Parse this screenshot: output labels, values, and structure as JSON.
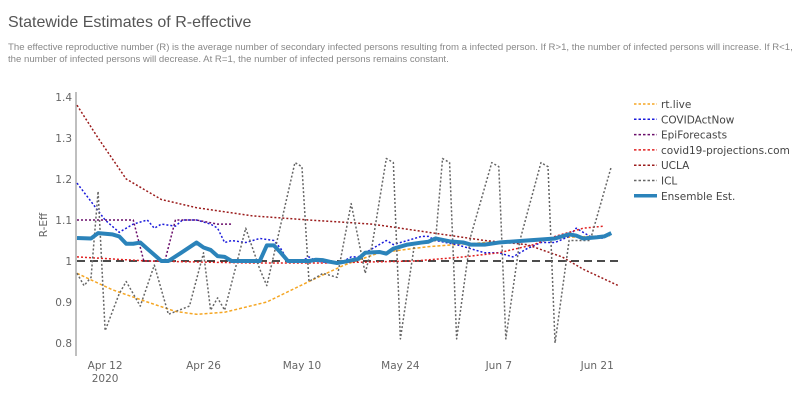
{
  "header": {
    "title": "Statewide Estimates of R-effective",
    "description": "The effective reproductive number (R) is the average number of secondary infected persons resulting from a infected person. If R>1, the number of infected persons will increase. If R<1, the number of infected persons will decrease. At R=1, the number of infected persons remains constant."
  },
  "chart_data": {
    "type": "line",
    "title": "Statewide Estimates of R-effective",
    "xlabel": "",
    "ylabel": "R-Eff",
    "x_unit": "days since Apr 8 2020",
    "xlim": [
      0,
      77
    ],
    "ylim": [
      0.775,
      1.41
    ],
    "x_ticks": [
      {
        "day": 4,
        "label": "Apr 12",
        "sub": "2020"
      },
      {
        "day": 18,
        "label": "Apr 26"
      },
      {
        "day": 32,
        "label": "May 10"
      },
      {
        "day": 46,
        "label": "May 24"
      },
      {
        "day": 60,
        "label": "Jun 7"
      },
      {
        "day": 74,
        "label": "Jun 21"
      }
    ],
    "y_ticks": [
      0.8,
      0.9,
      1,
      1.1,
      1.2,
      1.3,
      1.4
    ],
    "y_tick_labels": [
      "0.8",
      "0.9",
      "1",
      "1.1",
      "1.2",
      "1.3",
      "1.4"
    ],
    "reference_line": 1.0,
    "legend_position": "right",
    "series": [
      {
        "name": "rt.live",
        "color": "#f5a623",
        "dash": "3,2",
        "width": 1.5,
        "points": [
          [
            0,
            0.97
          ],
          [
            5,
            0.93
          ],
          [
            10,
            0.9
          ],
          [
            14,
            0.877
          ],
          [
            17,
            0.87
          ],
          [
            21,
            0.875
          ],
          [
            27,
            0.9
          ],
          [
            33,
            0.95
          ],
          [
            38,
            0.99
          ],
          [
            43,
            1.02
          ],
          [
            50,
            1.035
          ],
          [
            58,
            1.045
          ],
          [
            63,
            1.05
          ],
          [
            70,
            1.058
          ],
          [
            76,
            1.062
          ]
        ]
      },
      {
        "name": "COVIDActNow",
        "color": "#1a1adb",
        "dash": "2,2",
        "width": 1.5,
        "points": [
          [
            0,
            1.19
          ],
          [
            4,
            1.1
          ],
          [
            6,
            1.07
          ],
          [
            8,
            1.09
          ],
          [
            10,
            1.1
          ],
          [
            11,
            1.08
          ],
          [
            12,
            1.09
          ],
          [
            14,
            1.085
          ],
          [
            15,
            1.1
          ],
          [
            17,
            1.1
          ],
          [
            19,
            1.09
          ],
          [
            20,
            1.08
          ],
          [
            21,
            1.045
          ],
          [
            22,
            1.05
          ],
          [
            24,
            1.045
          ],
          [
            25,
            1.05
          ],
          [
            26,
            1.055
          ],
          [
            28,
            1.05
          ],
          [
            29,
            1.03
          ],
          [
            30,
            1.0
          ],
          [
            32,
            1.0
          ],
          [
            33,
            1.01
          ],
          [
            34,
            1.0
          ],
          [
            36,
            0.995
          ],
          [
            38,
            1.0
          ],
          [
            39,
            1.01
          ],
          [
            40,
            1.01
          ],
          [
            41,
            1.02
          ],
          [
            44,
            1.05
          ],
          [
            45,
            1.04
          ],
          [
            47,
            1.05
          ],
          [
            49,
            1.06
          ],
          [
            50,
            1.06
          ],
          [
            51,
            1.05
          ],
          [
            54,
            1.04
          ],
          [
            56,
            1.03
          ],
          [
            58,
            1.02
          ],
          [
            60,
            1.02
          ],
          [
            62,
            1.01
          ],
          [
            64,
            1.03
          ],
          [
            66,
            1.045
          ],
          [
            68,
            1.045
          ],
          [
            70,
            1.06
          ],
          [
            71,
            1.08
          ],
          [
            73,
            1.06
          ],
          [
            75,
            1.055
          ]
        ]
      },
      {
        "name": "EpiForecasts",
        "color": "#6a0d6a",
        "dash": "2,2",
        "width": 1.5,
        "points": [
          [
            0,
            1.1
          ],
          [
            8,
            1.1
          ],
          [
            9.5,
            1.0
          ],
          [
            12.5,
            1.0
          ],
          [
            14,
            1.1
          ],
          [
            17,
            1.1
          ],
          [
            20,
            1.09
          ],
          [
            22,
            1.09
          ]
        ]
      },
      {
        "name": "covid19-projections.com",
        "color": "#e02020",
        "dash": "2,2",
        "width": 1.5,
        "points": [
          [
            0,
            1.01
          ],
          [
            10,
            1.0
          ],
          [
            25,
            0.995
          ],
          [
            35,
            0.995
          ],
          [
            48,
            1.0
          ],
          [
            55,
            1.01
          ],
          [
            60,
            1.02
          ],
          [
            65,
            1.04
          ],
          [
            68,
            1.06
          ],
          [
            72,
            1.08
          ],
          [
            75,
            1.085
          ]
        ]
      },
      {
        "name": "UCLA",
        "color": "#9b1c1c",
        "dash": "2,2",
        "width": 1.5,
        "points": [
          [
            0,
            1.38
          ],
          [
            3,
            1.3
          ],
          [
            7,
            1.2
          ],
          [
            12,
            1.15
          ],
          [
            17,
            1.13
          ],
          [
            25,
            1.11
          ],
          [
            33,
            1.1
          ],
          [
            42,
            1.09
          ],
          [
            50,
            1.07
          ],
          [
            58,
            1.05
          ],
          [
            64,
            1.04
          ],
          [
            69,
            1.01
          ],
          [
            72,
            0.98
          ],
          [
            77,
            0.94
          ]
        ]
      },
      {
        "name": "ICL",
        "color": "#666666",
        "dash": "2,2",
        "width": 1.5,
        "points": [
          [
            0,
            0.97
          ],
          [
            1,
            0.94
          ],
          [
            2,
            0.96
          ],
          [
            3,
            1.17
          ],
          [
            4,
            0.83
          ],
          [
            6,
            0.92
          ],
          [
            7,
            0.95
          ],
          [
            9,
            0.89
          ],
          [
            11,
            0.99
          ],
          [
            13,
            0.87
          ],
          [
            16,
            0.89
          ],
          [
            18,
            1.02
          ],
          [
            19,
            0.88
          ],
          [
            20,
            0.91
          ],
          [
            21,
            0.88
          ],
          [
            24,
            1.08
          ],
          [
            26,
            0.98
          ],
          [
            27,
            0.94
          ],
          [
            31,
            1.24
          ],
          [
            32,
            1.23
          ],
          [
            33,
            0.95
          ],
          [
            35,
            0.97
          ],
          [
            37,
            0.96
          ],
          [
            39,
            1.14
          ],
          [
            41,
            0.97
          ],
          [
            42,
            1.04
          ],
          [
            44,
            1.25
          ],
          [
            45,
            1.24
          ],
          [
            46,
            0.81
          ],
          [
            48,
            1.04
          ],
          [
            51,
            1.05
          ],
          [
            52,
            1.25
          ],
          [
            53,
            1.24
          ],
          [
            54,
            0.81
          ],
          [
            56,
            1.06
          ],
          [
            59,
            1.24
          ],
          [
            60,
            1.23
          ],
          [
            61,
            0.81
          ],
          [
            63,
            1.05
          ],
          [
            66,
            1.24
          ],
          [
            67,
            1.23
          ],
          [
            68,
            0.8
          ],
          [
            70,
            1.05
          ],
          [
            73,
            1.05
          ],
          [
            76,
            1.23
          ]
        ]
      },
      {
        "name": "Ensemble Est.",
        "color": "#2b83ba",
        "dash": "",
        "width": 4,
        "points": [
          [
            0,
            1.056
          ],
          [
            2,
            1.055
          ],
          [
            3,
            1.068
          ],
          [
            5,
            1.065
          ],
          [
            6,
            1.06
          ],
          [
            7,
            1.042
          ],
          [
            8,
            1.042
          ],
          [
            9,
            1.045
          ],
          [
            10,
            1.03
          ],
          [
            12,
            1.0
          ],
          [
            13,
            1.0
          ],
          [
            15,
            1.022
          ],
          [
            17,
            1.045
          ],
          [
            18,
            1.033
          ],
          [
            19,
            1.027
          ],
          [
            20,
            1.012
          ],
          [
            21,
            1.01
          ],
          [
            22,
            1.0
          ],
          [
            26,
            1.0
          ],
          [
            27,
            1.038
          ],
          [
            28,
            1.038
          ],
          [
            29,
            1.02
          ],
          [
            30,
            1.0
          ],
          [
            33,
            1.0
          ],
          [
            34,
            1.003
          ],
          [
            35,
            1.002
          ],
          [
            36,
            0.998
          ],
          [
            37,
            0.995
          ],
          [
            38,
            0.998
          ],
          [
            40,
            1.005
          ],
          [
            41,
            1.02
          ],
          [
            43,
            1.022
          ],
          [
            44,
            1.018
          ],
          [
            45,
            1.03
          ],
          [
            47,
            1.04
          ],
          [
            49,
            1.045
          ],
          [
            50,
            1.047
          ],
          [
            51,
            1.055
          ],
          [
            53,
            1.048
          ],
          [
            55,
            1.045
          ],
          [
            56,
            1.04
          ],
          [
            58,
            1.04
          ],
          [
            60,
            1.045
          ],
          [
            64,
            1.05
          ],
          [
            68,
            1.055
          ],
          [
            70,
            1.065
          ],
          [
            71,
            1.062
          ],
          [
            72,
            1.055
          ],
          [
            74,
            1.058
          ],
          [
            75,
            1.06
          ],
          [
            76,
            1.068
          ]
        ]
      }
    ]
  }
}
